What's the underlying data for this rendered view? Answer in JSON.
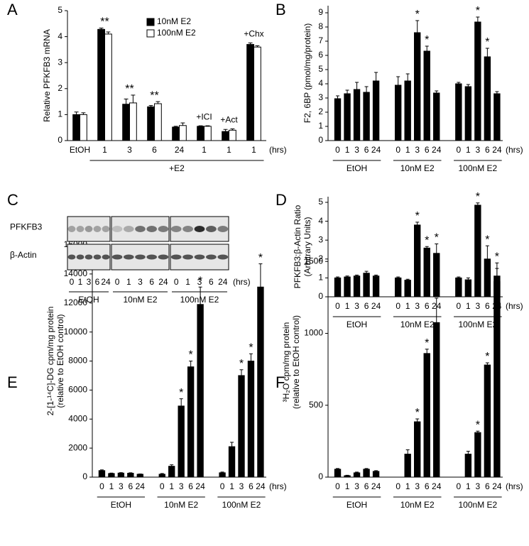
{
  "chart_data": [
    {
      "type": "bar",
      "panel_label": "A",
      "ylabel": [
        "Relative PFKFB3 mRNA"
      ],
      "ylim": [
        0,
        5
      ],
      "yticks": [
        0,
        1,
        2,
        3,
        4,
        5
      ],
      "categories": [
        "EtOH",
        "1",
        "3",
        "6",
        "24",
        "1",
        "1",
        "1"
      ],
      "x_unit": "(hrs)",
      "bracket_label": "+E2",
      "annotations": [
        null,
        "**",
        "**",
        "**",
        null,
        "+ICI",
        "+Act",
        "+Chx"
      ],
      "series": [
        {
          "name": "10nM E2",
          "color": "#000000",
          "values": [
            1.0,
            4.28,
            1.4,
            1.3,
            0.52,
            0.55,
            0.35,
            3.7
          ],
          "errors": [
            0.1,
            0.05,
            0.2,
            0.05,
            0.03,
            0.02,
            0.08,
            0.06
          ]
        },
        {
          "name": "100nM E2",
          "color": "#ffffff",
          "values": [
            1.0,
            4.1,
            1.45,
            1.42,
            0.58,
            0.55,
            0.4,
            3.6
          ],
          "errors": [
            0.07,
            0.08,
            0.3,
            0.08,
            0.1,
            0.02,
            0.05,
            0.05
          ]
        }
      ]
    },
    {
      "type": "bar",
      "panel_label": "B",
      "ylabel": [
        "F2, 6BP (pmol/mg/protein)"
      ],
      "ylim": [
        0,
        9.5
      ],
      "yticks": [
        0,
        1,
        2,
        3,
        4,
        5,
        6,
        7,
        8,
        9
      ],
      "x_unit": "(hrs)",
      "color": "#000000",
      "groups": [
        {
          "name": "EtOH",
          "categories": [
            "0",
            "1",
            "3",
            "6",
            "24"
          ],
          "values": [
            2.95,
            3.3,
            3.6,
            3.4,
            4.2
          ],
          "errors": [
            0.2,
            0.25,
            0.5,
            0.4,
            0.6
          ],
          "annotations": [
            null,
            null,
            null,
            null,
            null
          ]
        },
        {
          "name": "10nM E2",
          "categories": [
            "0",
            "1",
            "3",
            "6",
            "24"
          ],
          "values": [
            3.9,
            4.2,
            7.6,
            6.3,
            3.35
          ],
          "errors": [
            0.6,
            0.5,
            0.85,
            0.35,
            0.15
          ],
          "annotations": [
            null,
            null,
            "*",
            "*",
            null
          ]
        },
        {
          "name": "100nM E2",
          "categories": [
            "0",
            "1",
            "3",
            "6",
            "24"
          ],
          "values": [
            4.0,
            3.8,
            8.35,
            5.9,
            3.3
          ],
          "errors": [
            0.1,
            0.15,
            0.35,
            0.6,
            0.15
          ],
          "annotations": [
            null,
            null,
            "*",
            "*",
            null
          ]
        }
      ]
    },
    {
      "type": "bar",
      "panel_label": "D",
      "ylabel": [
        "PFKFB3:β-Actin Ratio",
        "(Arbitrary Units)"
      ],
      "ylim": [
        0,
        5.3
      ],
      "yticks": [
        0,
        1,
        2,
        3,
        4,
        5
      ],
      "x_unit": "(hrs)",
      "color": "#000000",
      "groups": [
        {
          "name": "EtOH",
          "categories": [
            "0",
            "1",
            "3",
            "6",
            "24"
          ],
          "values": [
            1.0,
            1.05,
            1.1,
            1.25,
            1.1
          ],
          "errors": [
            0.05,
            0.05,
            0.05,
            0.1,
            0.05
          ],
          "annotations": [
            null,
            null,
            null,
            null,
            null
          ]
        },
        {
          "name": "10nM E2",
          "categories": [
            "0",
            "1",
            "3",
            "6",
            "24"
          ],
          "values": [
            1.0,
            0.88,
            3.8,
            2.58,
            2.3
          ],
          "errors": [
            0.05,
            0.05,
            0.15,
            0.08,
            0.5
          ],
          "annotations": [
            null,
            null,
            "*",
            "*",
            "*"
          ]
        },
        {
          "name": "100nM E2",
          "categories": [
            "0",
            "1",
            "3",
            "6",
            "24"
          ],
          "values": [
            1.0,
            0.9,
            4.85,
            2.0,
            1.1
          ],
          "errors": [
            0.05,
            0.1,
            0.12,
            0.7,
            0.4
          ],
          "annotations": [
            null,
            null,
            "*",
            "*",
            null
          ]
        }
      ]
    },
    {
      "type": "bar",
      "panel_label": "E",
      "ylabel": [
        "2-[1-¹⁴C]-DG cpm/mg protein",
        "(relative to EtOH control)"
      ],
      "ylim": [
        0,
        16000
      ],
      "yticks": [
        0,
        2000,
        4000,
        6000,
        8000,
        10000,
        12000,
        14000,
        16000
      ],
      "x_unit": "(hrs)",
      "color": "#000000",
      "groups": [
        {
          "name": "EtOH",
          "categories": [
            "0",
            "1",
            "3",
            "6",
            "24"
          ],
          "values": [
            450,
            250,
            280,
            270,
            200
          ],
          "errors": [
            50,
            30,
            30,
            30,
            20
          ],
          "annotations": [
            null,
            null,
            null,
            null,
            null
          ]
        },
        {
          "name": "10nM E2",
          "categories": [
            "0",
            "1",
            "3",
            "6",
            "24"
          ],
          "values": [
            200,
            750,
            4900,
            7600,
            11900
          ],
          "errors": [
            50,
            100,
            500,
            400,
            1200
          ],
          "annotations": [
            null,
            null,
            "*",
            "*",
            "*"
          ]
        },
        {
          "name": "100nM E2",
          "categories": [
            "0",
            "1",
            "3",
            "6",
            "24"
          ],
          "values": [
            300,
            2100,
            7000,
            8000,
            13100
          ],
          "errors": [
            50,
            300,
            400,
            500,
            1600
          ],
          "annotations": [
            null,
            null,
            "*",
            "*",
            "*"
          ]
        }
      ]
    },
    {
      "type": "bar",
      "panel_label": "F",
      "ylabel": [
        "³H₂O cpm/mg protein",
        "(relative to EtOH control)"
      ],
      "ylim": [
        0,
        1600
      ],
      "yticks": [
        0,
        500,
        1000,
        1500
      ],
      "x_unit": "(hrs)",
      "color": "#000000",
      "groups": [
        {
          "name": "EtOH",
          "categories": [
            "0",
            "1",
            "3",
            "6",
            "24"
          ],
          "values": [
            55,
            10,
            30,
            55,
            40
          ],
          "errors": [
            5,
            3,
            5,
            5,
            5
          ],
          "annotations": [
            null,
            null,
            null,
            null,
            null
          ]
        },
        {
          "name": "10nM E2",
          "categories": [
            "0",
            "1",
            "3",
            "6",
            "24"
          ],
          "values": [
            0,
            160,
            385,
            860,
            1075
          ],
          "errors": [
            0,
            30,
            20,
            30,
            170
          ],
          "annotations": [
            null,
            null,
            "*",
            "*",
            "*"
          ]
        },
        {
          "name": "100nM E2",
          "categories": [
            "0",
            "1",
            "3",
            "6",
            "24"
          ],
          "values": [
            0,
            160,
            310,
            780,
            1360
          ],
          "errors": [
            0,
            20,
            10,
            15,
            130
          ],
          "annotations": [
            null,
            null,
            "*",
            "*",
            "*"
          ]
        }
      ]
    }
  ],
  "blot": {
    "panel_label": "C",
    "rows": [
      "PFKFB3",
      "β-Actin"
    ],
    "x_unit": "(hrs)",
    "groups": [
      {
        "name": "EtOH",
        "categories": [
          "0",
          "1",
          "3",
          "6",
          "24"
        ]
      },
      {
        "name": "10nM E2",
        "categories": [
          "0",
          "1",
          "3",
          "6",
          "24"
        ]
      },
      {
        "name": "100nM E2",
        "categories": [
          "0",
          "1",
          "3",
          "6",
          "24"
        ]
      }
    ]
  }
}
